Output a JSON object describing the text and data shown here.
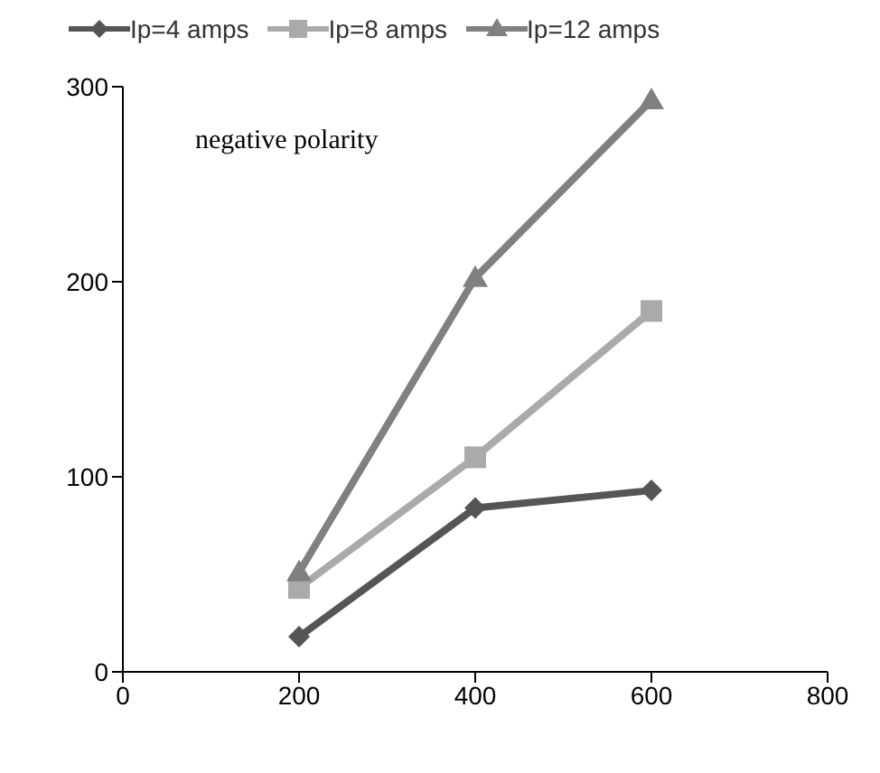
{
  "chart_data": {
    "type": "line",
    "x": [
      200,
      400,
      600
    ],
    "series": [
      {
        "name": "Ip=4 amps",
        "color": "#555555",
        "marker": "diamond",
        "values": [
          18,
          84,
          93
        ]
      },
      {
        "name": "Ip=8 amps",
        "color": "#aaaaaa",
        "marker": "square",
        "values": [
          43,
          110,
          185
        ]
      },
      {
        "name": "Ip=12 amps",
        "color": "#808080",
        "marker": "triangle",
        "values": [
          51,
          202,
          293
        ]
      }
    ],
    "xlim": [
      0,
      800
    ],
    "xticks": [
      0,
      200,
      400,
      600,
      800
    ],
    "ylim": [
      0,
      300
    ],
    "yticks": [
      0,
      100,
      200,
      300
    ],
    "grid": false,
    "legend": "top",
    "line_style": "solid",
    "annotations": [
      "negative polarity"
    ]
  }
}
